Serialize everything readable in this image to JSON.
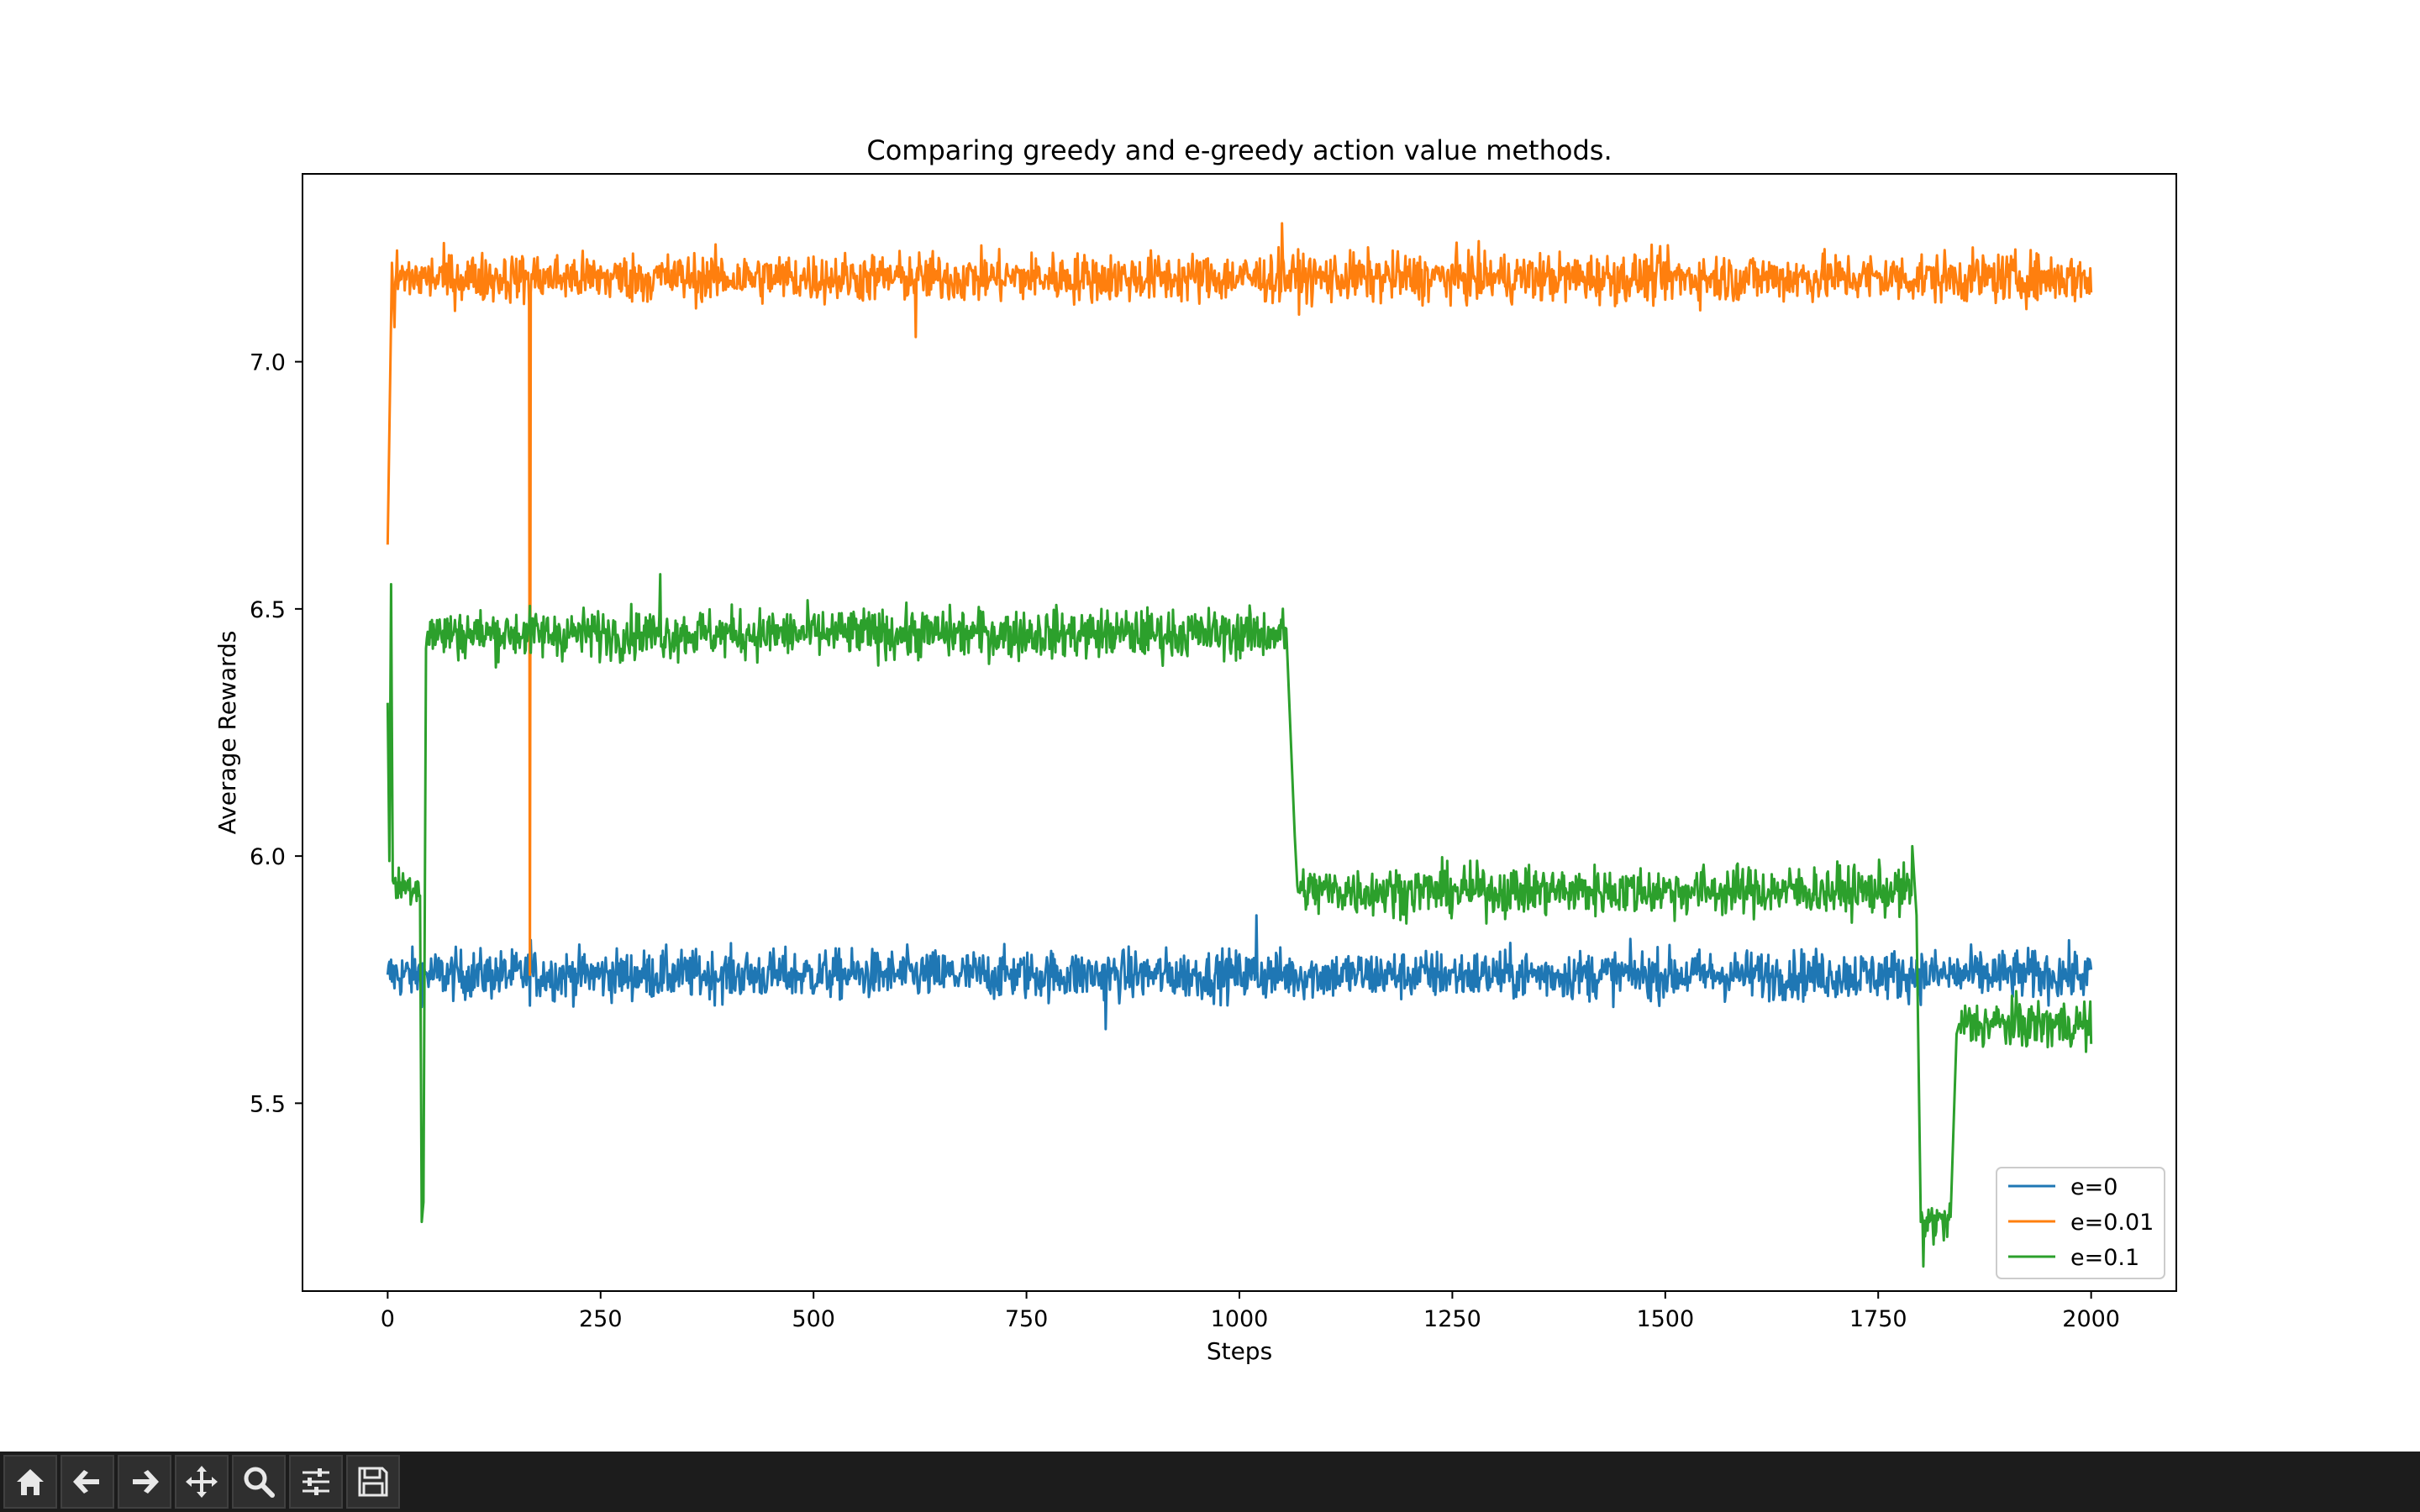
{
  "toolbar": {
    "buttons": [
      {
        "icon": "home-icon"
      },
      {
        "icon": "back-arrow-icon"
      },
      {
        "icon": "forward-arrow-icon"
      },
      {
        "icon": "pan-move-icon"
      },
      {
        "icon": "zoom-magnifier-icon"
      },
      {
        "icon": "sliders-configure-icon"
      },
      {
        "icon": "save-floppy-icon"
      }
    ]
  },
  "chart_data": {
    "type": "line",
    "title": "Comparing greedy and e-greedy action value methods.",
    "xlabel": "Steps",
    "ylabel": "Average Rewards",
    "xlim": [
      -100,
      2100
    ],
    "ylim": [
      5.12,
      7.38
    ],
    "xticks": [
      0,
      250,
      500,
      750,
      1000,
      1250,
      1500,
      1750,
      2000
    ],
    "xtick_labels": [
      "0",
      "250",
      "500",
      "750",
      "1000",
      "1250",
      "1500",
      "1750",
      "2000"
    ],
    "yticks": [
      5.5,
      6.0,
      6.5,
      7.0
    ],
    "ytick_labels": [
      "5.5",
      "6.0",
      "6.5",
      "7.0"
    ],
    "grid": false,
    "legend_position": "lower-right",
    "n_steps": 2000,
    "series": [
      {
        "name": "e=0",
        "color": "#1f77b4",
        "segments": [
          {
            "x": [
              0,
              2000
            ],
            "mean": 5.76,
            "noise": 0.035
          }
        ],
        "points": [
          [
            0,
            5.76
          ],
          [
            168,
            5.83
          ],
          [
            843,
            5.65
          ],
          [
            1020,
            5.88
          ],
          [
            2000,
            5.77
          ]
        ]
      },
      {
        "name": "e=0.01",
        "color": "#ff7f0e",
        "segments": [
          {
            "x": [
              8,
              2000
            ],
            "mean": 7.17,
            "noise": 0.035
          }
        ],
        "points": [
          [
            0,
            6.63
          ],
          [
            5,
            7.2
          ],
          [
            8,
            7.07
          ],
          [
            165,
            7.18
          ],
          [
            166,
            7.12
          ],
          [
            167,
            5.76
          ],
          [
            168,
            7.14
          ],
          [
            620,
            7.05
          ],
          [
            1050,
            7.28
          ],
          [
            2000,
            7.14
          ]
        ]
      },
      {
        "name": "e=0.1",
        "color": "#2ca02c",
        "segments": [
          {
            "x": [
              6,
              38
            ],
            "mean": 5.94,
            "noise": 0.03
          },
          {
            "x": [
              45,
              1055
            ],
            "mean": 6.45,
            "noise": 0.035
          },
          {
            "x": [
              1068,
              1790
            ],
            "mean": 5.93,
            "noise": 0.035
          },
          {
            "x": [
              1800,
              1835
            ],
            "mean": 5.26,
            "noise": 0.03
          },
          {
            "x": [
              1845,
              2000
            ],
            "mean": 5.66,
            "noise": 0.035
          }
        ],
        "points": [
          [
            0,
            6.31
          ],
          [
            2,
            5.99
          ],
          [
            4,
            6.55
          ],
          [
            6,
            5.95
          ],
          [
            38,
            5.92
          ],
          [
            40,
            5.26
          ],
          [
            42,
            5.3
          ],
          [
            45,
            6.42
          ],
          [
            320,
            6.57
          ],
          [
            1055,
            6.46
          ],
          [
            1060,
            6.25
          ],
          [
            1065,
            6.04
          ],
          [
            1068,
            5.94
          ],
          [
            1790,
            6.02
          ],
          [
            1795,
            5.88
          ],
          [
            1800,
            5.26
          ],
          [
            1803,
            5.17
          ],
          [
            1835,
            5.27
          ],
          [
            1842,
            5.64
          ],
          [
            1845,
            5.66
          ],
          [
            2000,
            5.62
          ]
        ]
      }
    ]
  }
}
